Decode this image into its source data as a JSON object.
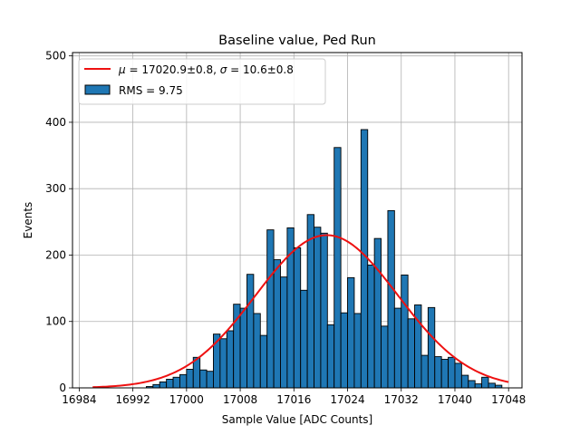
{
  "chart_data": {
    "type": "bar",
    "title": "Baseline value, Ped Run",
    "xlabel": "Sample Value [ADC Counts]",
    "ylabel": "Events",
    "xlim": [
      16983,
      17050
    ],
    "ylim": [
      0,
      505
    ],
    "xticks": [
      16984,
      16992,
      17000,
      17008,
      17016,
      17024,
      17032,
      17040,
      17048
    ],
    "yticks": [
      0,
      100,
      200,
      300,
      400,
      500
    ],
    "grid": true,
    "legend_position": "top-left",
    "bin_start": 16994,
    "bin_width": 1,
    "values": [
      2,
      5,
      9,
      13,
      16,
      20,
      28,
      46,
      27,
      25,
      81,
      74,
      86,
      126,
      120,
      171,
      112,
      79,
      238,
      193,
      167,
      241,
      211,
      147,
      261,
      242,
      233,
      95,
      362,
      113,
      166,
      112,
      389,
      185,
      225,
      93,
      267,
      120,
      170,
      104,
      125,
      49,
      121,
      47,
      43,
      46,
      37,
      19,
      11,
      6,
      16,
      7,
      4
    ],
    "series": [
      {
        "name": "fit",
        "type": "line",
        "label": "$\\mu = 17020.9\\pm0.8$, $\\sigma = 10.6\\pm0.8$",
        "color": "#ee1111",
        "mu": 17020.9,
        "sigma": 10.6,
        "amplitude": 230,
        "x_range": [
          16986,
          17048
        ]
      },
      {
        "name": "histogram",
        "type": "bar",
        "label": "RMS = 9.75",
        "color": "#1f77b4"
      }
    ]
  }
}
